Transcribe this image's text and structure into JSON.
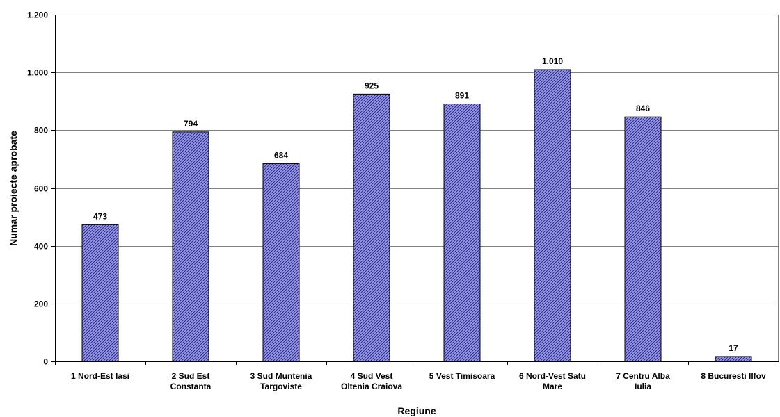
{
  "chart_data": {
    "type": "bar",
    "title": "",
    "xlabel": "Regiune",
    "ylabel": "Numar proiecte aprobate",
    "categories": [
      "1 Nord-Est Iasi",
      "2 Sud Est Constanta",
      "3 Sud Muntenia Targoviste",
      "4 Sud Vest Oltenia Craiova",
      "5 Vest Timisoara",
      "6 Nord-Vest Satu Mare",
      "7 Centru Alba Iulia",
      "8 Bucuresti Ilfov"
    ],
    "category_label_lines": [
      [
        "1 Nord-Est Iasi"
      ],
      [
        "2 Sud Est",
        "Constanta"
      ],
      [
        "3 Sud Muntenia",
        "Targoviste"
      ],
      [
        "4 Sud Vest",
        "Oltenia Craiova"
      ],
      [
        "5 Vest Timisoara"
      ],
      [
        "6 Nord-Vest Satu",
        "Mare"
      ],
      [
        "7 Centru Alba",
        "Iulia"
      ],
      [
        "8 Bucuresti Ilfov"
      ]
    ],
    "values": [
      473,
      794,
      684,
      925,
      891,
      1010,
      846,
      17
    ],
    "value_labels": [
      "473",
      "794",
      "684",
      "925",
      "891",
      "1.010",
      "846",
      "17"
    ],
    "ylim": [
      0,
      1200
    ],
    "yticks": [
      0,
      200,
      400,
      600,
      800,
      1000,
      1200
    ],
    "ytick_labels": [
      "0",
      "200",
      "400",
      "600",
      "800",
      "1.000",
      "1.200"
    ],
    "grid": true,
    "legend": "none",
    "bar_color": "#8c8cf0",
    "bar_hatch_color": "#1a1a6e"
  }
}
